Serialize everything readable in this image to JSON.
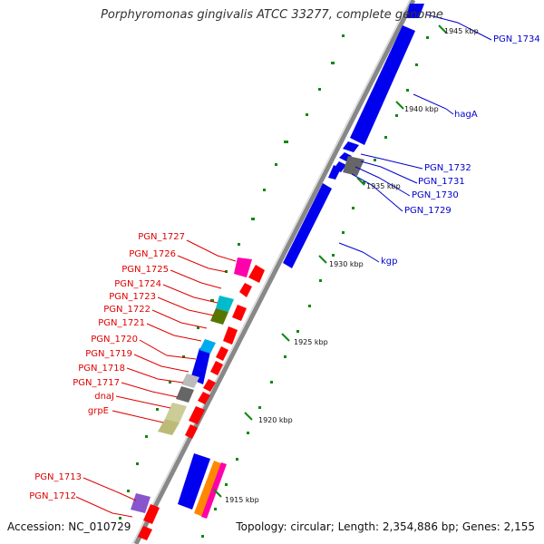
{
  "title": "Porphyromonas gingivalis ATCC 33277, complete genome",
  "footer": {
    "accession": "Accession: NC_010729",
    "summary": "Topology: circular; Length: 2,354,886 bp; Genes: 2,155"
  },
  "ticks": [
    "1945 kbp",
    "1940 kbp",
    "1935 kbp",
    "1930 kbp",
    "1925 kbp",
    "1920 kbp",
    "1915 kbp"
  ],
  "labels_right": [
    "PGN_1734",
    "hagA",
    "PGN_1732",
    "PGN_1731",
    "PGN_1730",
    "PGN_1729",
    "kgp"
  ],
  "labels_left": [
    "PGN_1727",
    "PGN_1726",
    "PGN_1725",
    "PGN_1724",
    "PGN_1723",
    "PGN_1722",
    "PGN_1721",
    "PGN_1720",
    "PGN_1719",
    "PGN_1718",
    "PGN_1717",
    "dnaJ",
    "grpE",
    "PGN_1713",
    "PGN_1712"
  ],
  "colors": {
    "forward_cds": "#0000ee",
    "reverse_cds": "#ff0000",
    "backbone": "#888888",
    "gc_dots": "#118811",
    "right_label": "#0000cc",
    "left_label": "#e00000"
  }
}
